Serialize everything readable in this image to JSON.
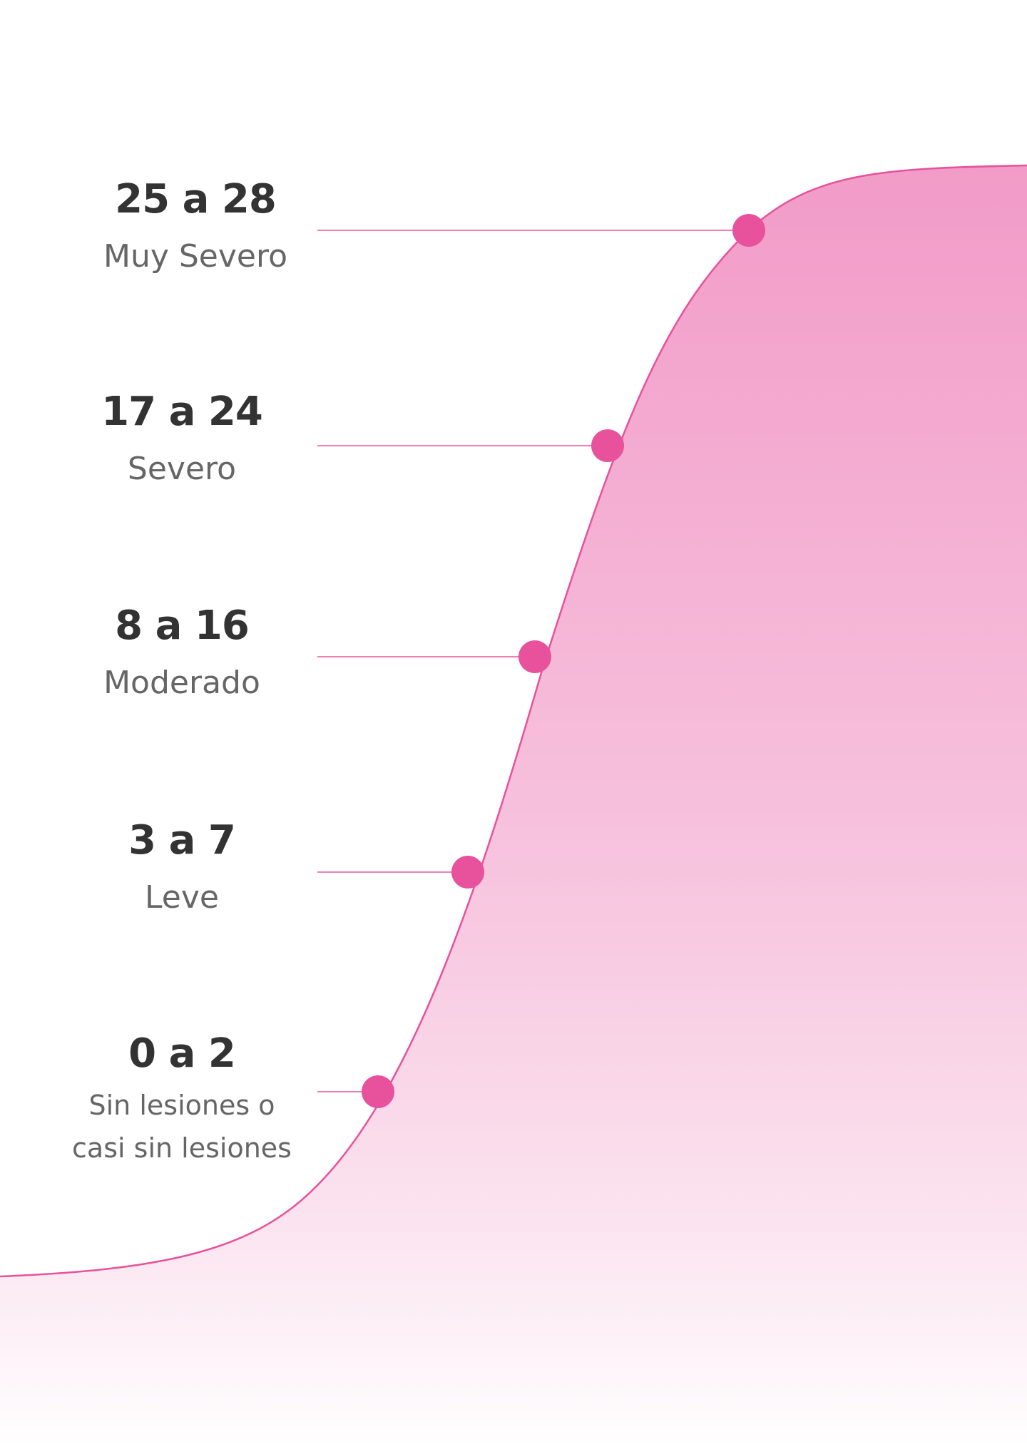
{
  "colors": {
    "accent": "#e8519b",
    "connector": "#f080b4",
    "fill_top": "#f29bc8",
    "fill_bottom": "#ffffff",
    "range_text": "#333333",
    "label_text": "#666666"
  },
  "levels": [
    {
      "range": "25 a 28",
      "label": "Muy Severo"
    },
    {
      "range": "17 a 24",
      "label": "Severo"
    },
    {
      "range": "8 a 16",
      "label": "Moderado"
    },
    {
      "range": "3 a 7",
      "label": "Leve"
    },
    {
      "range": "0 a 2",
      "label_line1": "Sin lesiones o",
      "label_line2": "casi sin lesiones"
    }
  ]
}
